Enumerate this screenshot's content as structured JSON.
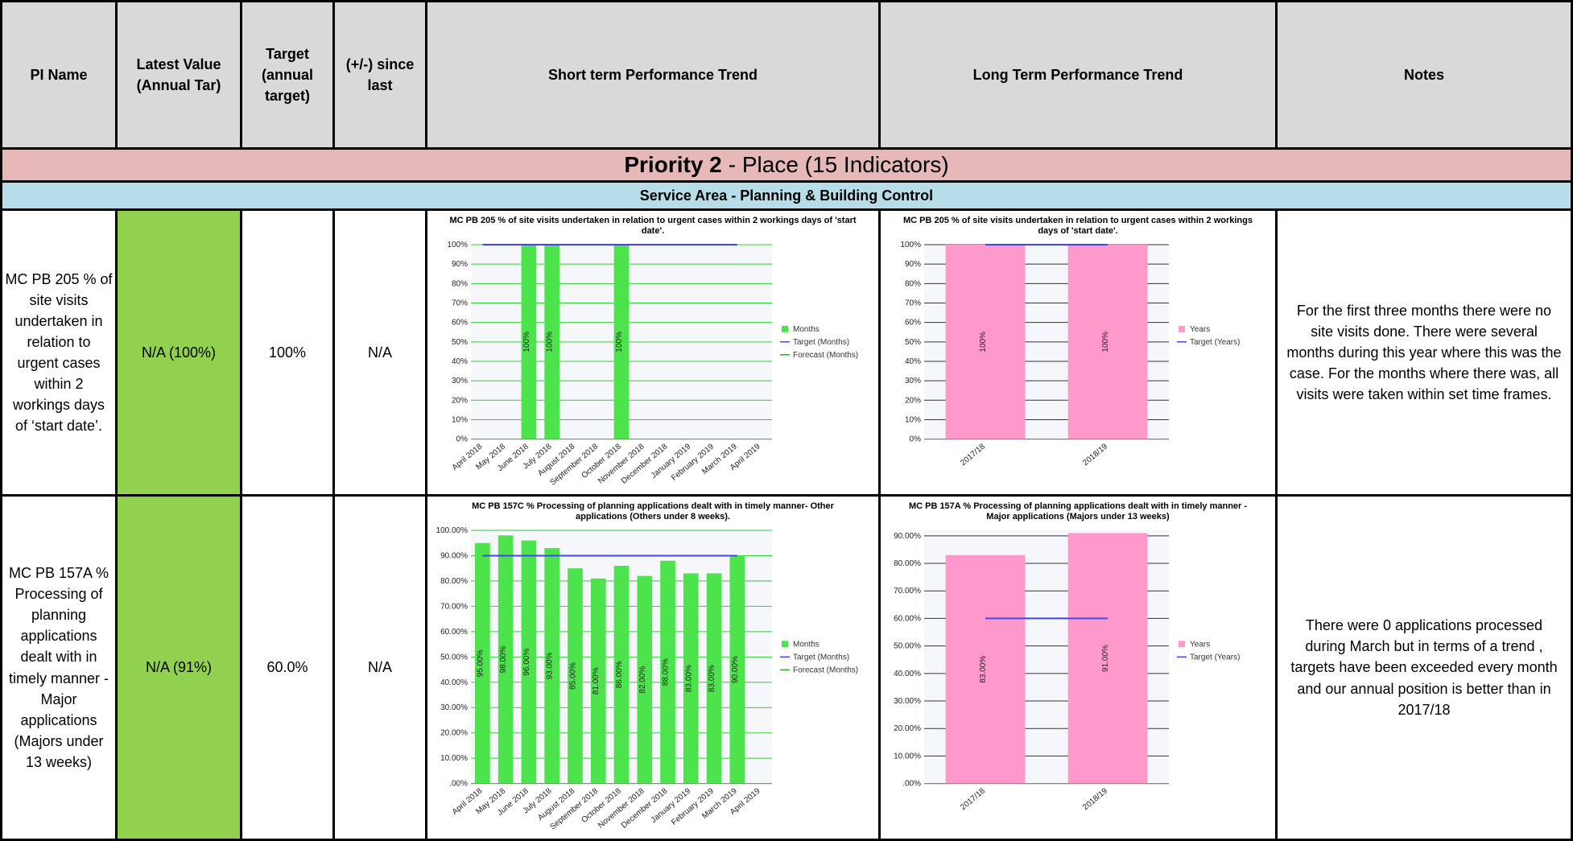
{
  "header": {
    "columns": [
      "PI Name",
      "Latest Value (Annual Tar)",
      "Target (annual target)",
      "(+/-) since last",
      "Short term Performance Trend",
      "Long Term Performance Trend",
      "Notes"
    ]
  },
  "priority": {
    "label": "Priority 2",
    "text": "- Place (15 Indicators)"
  },
  "service_area": "Service Area - Planning & Building Control",
  "rows": [
    {
      "name": "MC PB 205 % of site visits undertaken in relation to urgent cases within 2 workings days of ‘start date’.",
      "latest": "N/A (100%)",
      "target": "100%",
      "change": "N/A",
      "short_chart": {
        "type": "bar",
        "title": "MC PB 205 % of site visits undertaken in relation to urgent cases within 2 workings days of 'start date'.",
        "grid_color": "#33cc33",
        "categories": [
          "April 2018",
          "May 2018",
          "June 2018",
          "July 2018",
          "August 2018",
          "September 2018",
          "October 2018",
          "November 2018",
          "December 2018",
          "January 2019",
          "February 2019",
          "March 2019",
          "April 2019"
        ],
        "series": [
          {
            "name": "Months",
            "type": "bar",
            "color": "#4ce34c",
            "values": [
              null,
              null,
              100,
              100,
              null,
              null,
              100,
              null,
              null,
              null,
              null,
              null,
              null
            ],
            "value_labels": [
              null,
              null,
              "100%",
              "100%",
              null,
              null,
              "100%",
              null,
              null,
              null,
              null,
              null,
              null
            ]
          },
          {
            "name": "Target (Months)",
            "type": "line",
            "color": "#4444ee",
            "values": [
              100,
              100,
              100,
              100,
              100,
              100,
              100,
              100,
              100,
              100,
              100,
              100,
              null
            ]
          },
          {
            "name": "Forecast (Months)",
            "type": "line",
            "color": "#33aa33",
            "values": [
              null,
              null,
              null,
              null,
              null,
              null,
              null,
              null,
              null,
              null,
              null,
              null,
              null
            ]
          }
        ],
        "ylim": [
          0,
          100
        ],
        "yticks": [
          {
            "value": 0,
            "label": "0%"
          },
          {
            "value": 10,
            "label": "10%"
          },
          {
            "value": 20,
            "label": "20%"
          },
          {
            "value": 30,
            "label": "30%"
          },
          {
            "value": 40,
            "label": "40%"
          },
          {
            "value": 50,
            "label": "50%"
          },
          {
            "value": 60,
            "label": "60%"
          },
          {
            "value": 70,
            "label": "70%"
          },
          {
            "value": 80,
            "label": "80%"
          },
          {
            "value": 90,
            "label": "90%"
          },
          {
            "value": 100,
            "label": "100%"
          }
        ]
      },
      "long_chart": {
        "type": "bar",
        "title": "MC PB 205 % of site visits undertaken in relation to urgent cases within 2 workings days of 'start date'.",
        "grid_color": "#333333",
        "categories": [
          "2017/18",
          "2018/19"
        ],
        "series": [
          {
            "name": "Years",
            "type": "bar",
            "color": "#ff99cc",
            "values": [
              100,
              100
            ],
            "value_labels": [
              "100%",
              "100%"
            ]
          },
          {
            "name": "Target (Years)",
            "type": "line",
            "color": "#4444ee",
            "values": [
              100,
              100
            ]
          }
        ],
        "ylim": [
          0,
          100
        ],
        "yticks": [
          {
            "value": 0,
            "label": "0%"
          },
          {
            "value": 10,
            "label": "10%"
          },
          {
            "value": 20,
            "label": "20%"
          },
          {
            "value": 30,
            "label": "30%"
          },
          {
            "value": 40,
            "label": "40%"
          },
          {
            "value": 50,
            "label": "50%"
          },
          {
            "value": 60,
            "label": "60%"
          },
          {
            "value": 70,
            "label": "70%"
          },
          {
            "value": 80,
            "label": "80%"
          },
          {
            "value": 90,
            "label": "90%"
          },
          {
            "value": 100,
            "label": "100%"
          }
        ]
      },
      "notes": "For the first three months there were no site visits done.  There were several months during this year where this was the case.  For the months where there was, all visits were taken within set time frames."
    },
    {
      "name": "MC PB 157A % Processing of planning applications dealt with in timely manner - Major applications (Majors under 13 weeks)",
      "latest": "N/A (91%)",
      "target": "60.0%",
      "change": "N/A",
      "short_chart": {
        "type": "bar",
        "title": "MC PB 157C % Processing of planning applications dealt with in timely manner- Other applications (Others under 8 weeks).",
        "grid_color": "#33cc33",
        "categories": [
          "April 2018",
          "May 2018",
          "June 2018",
          "July 2018",
          "August 2018",
          "September 2018",
          "October 2018",
          "November 2018",
          "December 2018",
          "January 2019",
          "February 2019",
          "March 2019",
          "April 2019"
        ],
        "series": [
          {
            "name": "Months",
            "type": "bar",
            "color": "#4ce34c",
            "values": [
              95,
              98,
              96,
              93,
              85,
              81,
              86,
              82,
              88,
              83,
              83,
              90,
              null
            ],
            "value_labels": [
              "95.00%",
              "98.00%",
              "96.00%",
              "93.00%",
              "85.00%",
              "81.00%",
              "86.00%",
              "82.00%",
              "88.00%",
              "83.00%",
              "83.00%",
              "90.00%",
              null
            ]
          },
          {
            "name": "Target (Months)",
            "type": "line",
            "color": "#4444ee",
            "values": [
              90,
              90,
              90,
              90,
              90,
              90,
              90,
              90,
              90,
              90,
              90,
              90,
              null
            ]
          },
          {
            "name": "Forecast (Months)",
            "type": "line",
            "color": "#33aa33",
            "values": [
              null,
              null,
              null,
              null,
              null,
              null,
              null,
              null,
              null,
              null,
              null,
              null,
              null
            ]
          }
        ],
        "ylim": [
          0,
          100
        ],
        "yticks": [
          {
            "value": 0,
            "label": ".00%"
          },
          {
            "value": 10,
            "label": "10.00%"
          },
          {
            "value": 20,
            "label": "20.00%"
          },
          {
            "value": 30,
            "label": "30.00%"
          },
          {
            "value": 40,
            "label": "40.00%"
          },
          {
            "value": 50,
            "label": "50.00%"
          },
          {
            "value": 60,
            "label": "60.00%"
          },
          {
            "value": 70,
            "label": "70.00%"
          },
          {
            "value": 80,
            "label": "80.00%"
          },
          {
            "value": 90,
            "label": "90.00%"
          },
          {
            "value": 100,
            "label": "100.00%"
          }
        ]
      },
      "long_chart": {
        "type": "bar",
        "title": "MC PB 157A % Processing of planning applications dealt with in timely manner - Major applications (Majors under 13 weeks)",
        "grid_color": "#333333",
        "categories": [
          "2017/18",
          "2018/19"
        ],
        "series": [
          {
            "name": "Years",
            "type": "bar",
            "color": "#ff99cc",
            "values": [
              83,
              91
            ],
            "value_labels": [
              "83.00%",
              "91.00%"
            ]
          },
          {
            "name": "Target (Years)",
            "type": "line",
            "color": "#4444ee",
            "values": [
              60,
              60
            ]
          }
        ],
        "ylim": [
          0,
          92
        ],
        "yticks": [
          {
            "value": 0,
            "label": ".00%"
          },
          {
            "value": 10,
            "label": "10.00%"
          },
          {
            "value": 20,
            "label": "20.00%"
          },
          {
            "value": 30,
            "label": "30.00%"
          },
          {
            "value": 40,
            "label": "40.00%"
          },
          {
            "value": 50,
            "label": "50.00%"
          },
          {
            "value": 60,
            "label": "60.00%"
          },
          {
            "value": 70,
            "label": "70.00%"
          },
          {
            "value": 80,
            "label": "80.00%"
          },
          {
            "value": 90,
            "label": "90.00%"
          }
        ]
      },
      "notes": "There were 0 applications processed during March but in terms of a trend , targets have been exceeded every month and our annual position is better than in 2017/18"
    }
  ]
}
